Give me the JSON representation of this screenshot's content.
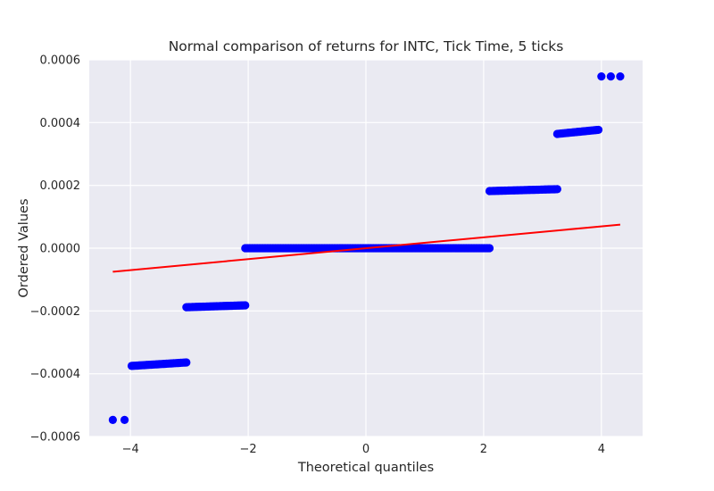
{
  "chart_data": {
    "type": "scatter",
    "title": "Normal comparison of returns for INTC, Tick Time, 5 ticks",
    "xlabel": "Theoretical quantiles",
    "ylabel": "Ordered Values",
    "xlim": [
      -4.7,
      4.7
    ],
    "ylim": [
      -0.0006,
      0.0006
    ],
    "xticks": [
      -4,
      -2,
      0,
      2,
      4
    ],
    "xtick_labels": [
      "−4",
      "−2",
      "0",
      "2",
      "4"
    ],
    "yticks": [
      -0.0006,
      -0.0004,
      -0.0002,
      0.0,
      0.0002,
      0.0004,
      0.0006
    ],
    "ytick_labels": [
      "−0.0006",
      "−0.0004",
      "−0.0002",
      "0.0000",
      "0.0002",
      "0.0004",
      "0.0006"
    ],
    "grid": true,
    "colors": {
      "points": "#0000ff",
      "fit_line": "#ff0000",
      "background": "#eaeaf2",
      "grid": "#ffffff"
    },
    "series": [
      {
        "kind": "scatter",
        "segments": [
          {
            "x_start": -4.3,
            "x_end": -4.1,
            "y_start": -0.000547,
            "y_end": -0.000547,
            "count": 2
          },
          {
            "x_start": -3.98,
            "x_end": -3.05,
            "y_start": -0.000375,
            "y_end": -0.000364,
            "count": 40
          },
          {
            "x_start": -3.05,
            "x_end": -2.05,
            "y_start": -0.000188,
            "y_end": -0.000182,
            "count": 50
          },
          {
            "x_start": -2.05,
            "x_end": 2.1,
            "y_start": 0.0,
            "y_end": 0.0,
            "count": 180
          },
          {
            "x_start": 2.1,
            "x_end": 3.25,
            "y_start": 0.000182,
            "y_end": 0.000188,
            "count": 55
          },
          {
            "x_start": 3.25,
            "x_end": 3.95,
            "y_start": 0.000364,
            "y_end": 0.000377,
            "count": 30
          },
          {
            "x_start": 4.0,
            "x_end": 4.32,
            "y_start": 0.000547,
            "y_end": 0.000547,
            "count": 3
          }
        ]
      },
      {
        "kind": "line",
        "x": [
          -4.3,
          4.32
        ],
        "y": [
          -7.5e-05,
          7.5e-05
        ]
      }
    ]
  }
}
